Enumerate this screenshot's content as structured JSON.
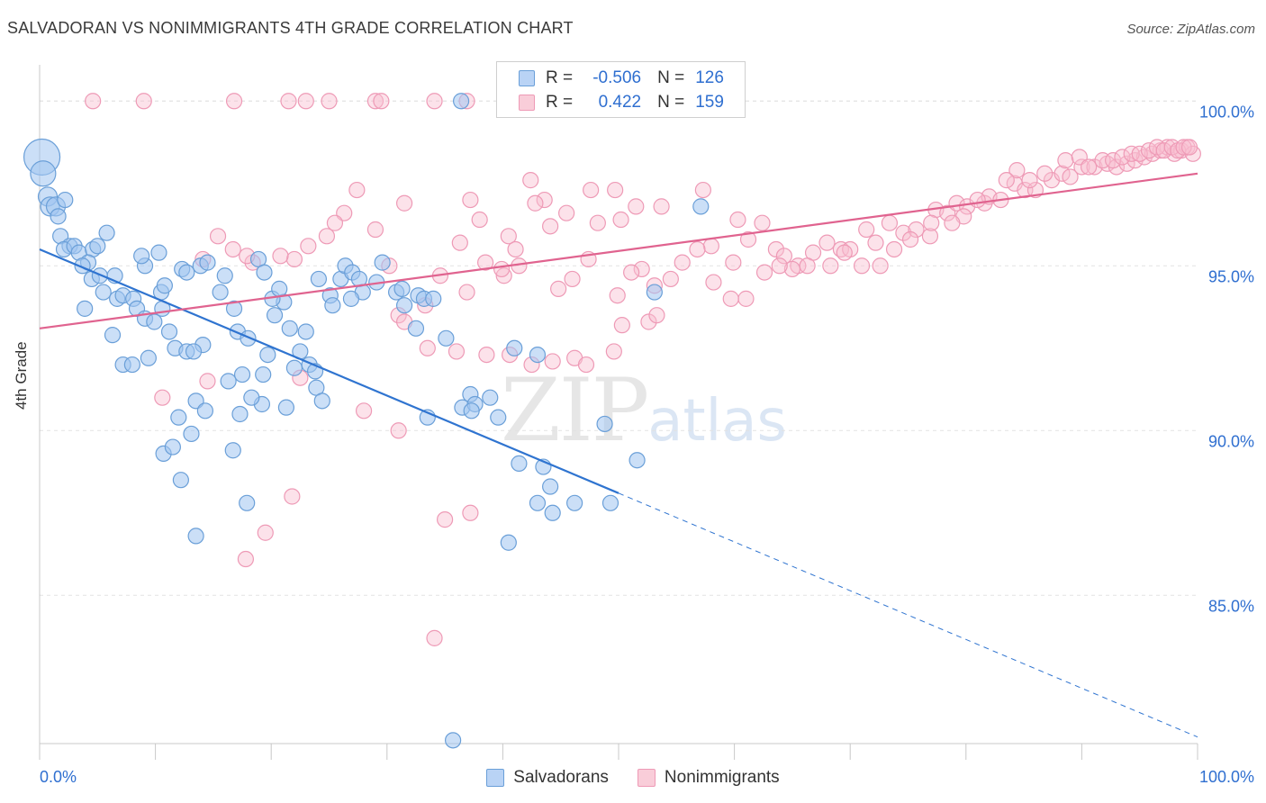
{
  "title": "SALVADORAN VS NONIMMIGRANTS 4TH GRADE CORRELATION CHART",
  "source": "Source: ZipAtlas.com",
  "watermark": {
    "zip": "ZIP",
    "atlas": "atlas"
  },
  "legend_top": {
    "rows": [
      {
        "r_label": "R =",
        "r_value": "-0.506",
        "n_label": "N =",
        "n_value": "126"
      },
      {
        "r_label": "R =",
        "r_value": "0.422",
        "n_label": "N =",
        "n_value": "159"
      }
    ]
  },
  "legend_bottom": {
    "series1": "Salvadorans",
    "series2": "Nonimmigrants"
  },
  "colors": {
    "blue_fill": "rgba(160,196,240,0.55)",
    "blue_stroke": "#6a9fd8",
    "blue_line": "#2f74d0",
    "pink_fill": "rgba(248,190,208,0.45)",
    "pink_stroke": "#ee9ab6",
    "pink_line": "#e0638f",
    "tick_label": "#2f6fd0",
    "grid": "#e2e2e2"
  },
  "chart_data": {
    "type": "scatter",
    "title": "SALVADORAN VS NONIMMIGRANTS 4TH GRADE CORRELATION CHART",
    "xlabel": "",
    "ylabel": "4th Grade",
    "xlim": [
      0,
      100
    ],
    "ylim": [
      80.5,
      101.1
    ],
    "x_tick_labels": [
      "0.0%",
      "100.0%"
    ],
    "y_ticks": [
      85,
      90,
      95,
      100
    ],
    "y_tick_labels": [
      "85.0%",
      "90.0%",
      "95.0%",
      "100.0%"
    ],
    "grid": true,
    "legend_position": "top-center",
    "series": [
      {
        "name": "Salvadorans",
        "R": -0.506,
        "N": 126,
        "trend": {
          "x0": 0,
          "y0": 95.5,
          "x_solid_end": 50,
          "x1": 100,
          "y1": 80.7
        },
        "points": [
          [
            0.2,
            98.3
          ],
          [
            0.3,
            97.8
          ],
          [
            0.7,
            97.1
          ],
          [
            0.9,
            96.8
          ],
          [
            1.4,
            96.8
          ],
          [
            1.6,
            96.5
          ],
          [
            2.2,
            97.0
          ],
          [
            1.8,
            95.9
          ],
          [
            2.6,
            95.6
          ],
          [
            2.1,
            95.5
          ],
          [
            3.0,
            95.6
          ],
          [
            3.4,
            95.4
          ],
          [
            4.6,
            95.5
          ],
          [
            5.0,
            95.6
          ],
          [
            5.8,
            96.0
          ],
          [
            4.2,
            95.1
          ],
          [
            3.7,
            95.0
          ],
          [
            4.5,
            94.6
          ],
          [
            5.2,
            94.7
          ],
          [
            6.5,
            94.7
          ],
          [
            5.5,
            94.2
          ],
          [
            6.7,
            94.0
          ],
          [
            7.2,
            94.1
          ],
          [
            8.1,
            94.0
          ],
          [
            3.9,
            93.7
          ],
          [
            8.4,
            93.7
          ],
          [
            9.1,
            93.4
          ],
          [
            9.9,
            93.3
          ],
          [
            10.6,
            93.7
          ],
          [
            11.2,
            93.0
          ],
          [
            6.3,
            92.9
          ],
          [
            11.7,
            92.5
          ],
          [
            12.7,
            92.4
          ],
          [
            14.1,
            92.6
          ],
          [
            13.3,
            92.4
          ],
          [
            7.2,
            92.0
          ],
          [
            8.0,
            92.0
          ],
          [
            9.4,
            92.2
          ],
          [
            10.5,
            94.2
          ],
          [
            10.8,
            94.4
          ],
          [
            10.3,
            95.4
          ],
          [
            9.1,
            95.0
          ],
          [
            8.8,
            95.3
          ],
          [
            12.3,
            94.9
          ],
          [
            12.7,
            94.8
          ],
          [
            13.9,
            95.0
          ],
          [
            14.5,
            95.1
          ],
          [
            15.6,
            94.2
          ],
          [
            16.0,
            94.7
          ],
          [
            16.8,
            93.7
          ],
          [
            17.1,
            93.0
          ],
          [
            18.9,
            95.2
          ],
          [
            19.4,
            94.8
          ],
          [
            20.3,
            93.5
          ],
          [
            21.1,
            93.9
          ],
          [
            19.7,
            92.3
          ],
          [
            18.0,
            92.8
          ],
          [
            17.5,
            91.7
          ],
          [
            19.3,
            91.7
          ],
          [
            22.5,
            92.4
          ],
          [
            22.0,
            91.9
          ],
          [
            23.3,
            92.0
          ],
          [
            23.8,
            91.8
          ],
          [
            23.9,
            91.3
          ],
          [
            24.4,
            90.9
          ],
          [
            21.3,
            90.7
          ],
          [
            19.2,
            90.8
          ],
          [
            18.3,
            91.0
          ],
          [
            13.5,
            90.9
          ],
          [
            16.3,
            91.5
          ],
          [
            17.3,
            90.5
          ],
          [
            14.3,
            90.6
          ],
          [
            12.0,
            90.4
          ],
          [
            13.1,
            89.9
          ],
          [
            10.7,
            89.3
          ],
          [
            11.5,
            89.5
          ],
          [
            16.7,
            89.4
          ],
          [
            17.9,
            87.8
          ],
          [
            12.2,
            88.5
          ],
          [
            13.5,
            86.8
          ],
          [
            20.1,
            94.0
          ],
          [
            20.7,
            94.3
          ],
          [
            21.6,
            93.1
          ],
          [
            23.0,
            93.0
          ],
          [
            24.1,
            94.6
          ],
          [
            25.1,
            94.1
          ],
          [
            26.0,
            94.6
          ],
          [
            26.4,
            95.0
          ],
          [
            27.0,
            94.8
          ],
          [
            27.6,
            94.6
          ],
          [
            27.9,
            94.2
          ],
          [
            26.9,
            94.0
          ],
          [
            25.3,
            93.8
          ],
          [
            29.1,
            94.5
          ],
          [
            29.6,
            95.1
          ],
          [
            30.8,
            94.2
          ],
          [
            31.3,
            94.3
          ],
          [
            31.5,
            93.8
          ],
          [
            32.7,
            94.1
          ],
          [
            32.5,
            93.1
          ],
          [
            33.2,
            94.0
          ],
          [
            34.0,
            94.0
          ],
          [
            35.1,
            92.8
          ],
          [
            37.2,
            91.1
          ],
          [
            36.5,
            90.7
          ],
          [
            37.6,
            90.8
          ],
          [
            37.3,
            90.6
          ],
          [
            38.9,
            91.0
          ],
          [
            39.6,
            90.4
          ],
          [
            33.5,
            90.4
          ],
          [
            41.0,
            92.5
          ],
          [
            43.0,
            92.3
          ],
          [
            41.4,
            89.0
          ],
          [
            43.5,
            88.9
          ],
          [
            44.1,
            88.3
          ],
          [
            43.0,
            87.8
          ],
          [
            44.3,
            87.5
          ],
          [
            40.5,
            86.6
          ],
          [
            46.2,
            87.8
          ],
          [
            48.8,
            90.2
          ],
          [
            51.6,
            89.1
          ],
          [
            49.3,
            87.8
          ],
          [
            53.1,
            94.2
          ],
          [
            57.1,
            96.8
          ],
          [
            36.4,
            100.0
          ],
          [
            35.7,
            80.6
          ]
        ]
      },
      {
        "name": "Nonimmigrants",
        "R": 0.422,
        "N": 159,
        "trend": {
          "x0": 0,
          "y0": 93.1,
          "x1": 100,
          "y1": 97.8
        },
        "points": [
          [
            4.6,
            100.0
          ],
          [
            9.0,
            100.0
          ],
          [
            16.8,
            100.0
          ],
          [
            21.5,
            100.0
          ],
          [
            23.0,
            100.0
          ],
          [
            25.0,
            100.0
          ],
          [
            29.0,
            100.0
          ],
          [
            29.5,
            100.0
          ],
          [
            34.1,
            100.0
          ],
          [
            36.9,
            100.0
          ],
          [
            37.2,
            97.0
          ],
          [
            38.0,
            96.4
          ],
          [
            40.1,
            94.7
          ],
          [
            40.5,
            95.9
          ],
          [
            41.1,
            95.5
          ],
          [
            42.4,
            97.6
          ],
          [
            43.6,
            97.0
          ],
          [
            45.5,
            96.6
          ],
          [
            47.6,
            97.3
          ],
          [
            48.2,
            96.3
          ],
          [
            49.7,
            97.3
          ],
          [
            50.2,
            96.4
          ],
          [
            51.5,
            96.8
          ],
          [
            53.7,
            96.8
          ],
          [
            57.3,
            97.3
          ],
          [
            58.0,
            95.6
          ],
          [
            59.9,
            95.1
          ],
          [
            60.3,
            96.4
          ],
          [
            61.2,
            95.8
          ],
          [
            62.4,
            96.3
          ],
          [
            63.6,
            95.5
          ],
          [
            64.3,
            95.3
          ],
          [
            65.5,
            95.0
          ],
          [
            66.8,
            95.4
          ],
          [
            68.0,
            95.7
          ],
          [
            69.2,
            95.5
          ],
          [
            70.0,
            95.5
          ],
          [
            71.4,
            96.1
          ],
          [
            72.2,
            95.7
          ],
          [
            73.4,
            96.3
          ],
          [
            74.6,
            96.0
          ],
          [
            75.7,
            96.1
          ],
          [
            76.9,
            95.9
          ],
          [
            77.4,
            96.7
          ],
          [
            78.4,
            96.6
          ],
          [
            79.2,
            96.9
          ],
          [
            80.1,
            96.8
          ],
          [
            81.6,
            96.9
          ],
          [
            82.0,
            97.1
          ],
          [
            83.0,
            97.0
          ],
          [
            84.2,
            97.5
          ],
          [
            85.1,
            97.3
          ],
          [
            86.0,
            97.3
          ],
          [
            87.4,
            97.6
          ],
          [
            88.3,
            97.8
          ],
          [
            89.0,
            97.7
          ],
          [
            90.0,
            98.0
          ],
          [
            91.1,
            98.0
          ],
          [
            92.2,
            98.1
          ],
          [
            93.0,
            98.0
          ],
          [
            93.9,
            98.1
          ],
          [
            94.6,
            98.2
          ],
          [
            95.4,
            98.3
          ],
          [
            96.1,
            98.4
          ],
          [
            96.8,
            98.5
          ],
          [
            97.4,
            98.6
          ],
          [
            98.0,
            98.4
          ],
          [
            98.6,
            98.5
          ],
          [
            99.1,
            98.6
          ],
          [
            99.6,
            98.4
          ],
          [
            88.6,
            98.2
          ],
          [
            89.8,
            98.3
          ],
          [
            90.6,
            98.0
          ],
          [
            91.8,
            98.2
          ],
          [
            92.7,
            98.2
          ],
          [
            93.5,
            98.3
          ],
          [
            94.3,
            98.4
          ],
          [
            95.0,
            98.4
          ],
          [
            95.8,
            98.5
          ],
          [
            96.5,
            98.6
          ],
          [
            97.1,
            98.5
          ],
          [
            97.8,
            98.6
          ],
          [
            98.3,
            98.5
          ],
          [
            98.8,
            98.6
          ],
          [
            99.3,
            98.6
          ],
          [
            85.5,
            97.6
          ],
          [
            86.8,
            97.8
          ],
          [
            84.4,
            97.9
          ],
          [
            83.5,
            97.6
          ],
          [
            81.0,
            97.0
          ],
          [
            79.8,
            96.5
          ],
          [
            78.8,
            96.3
          ],
          [
            77.0,
            96.3
          ],
          [
            75.2,
            95.8
          ],
          [
            73.8,
            95.5
          ],
          [
            72.6,
            95.0
          ],
          [
            71.0,
            95.0
          ],
          [
            69.5,
            95.4
          ],
          [
            68.3,
            95.0
          ],
          [
            66.3,
            95.0
          ],
          [
            65.0,
            94.9
          ],
          [
            63.9,
            95.0
          ],
          [
            62.6,
            94.8
          ],
          [
            61.0,
            94.0
          ],
          [
            59.7,
            94.0
          ],
          [
            58.2,
            94.5
          ],
          [
            56.8,
            95.5
          ],
          [
            55.5,
            95.1
          ],
          [
            54.5,
            94.6
          ],
          [
            53.1,
            94.4
          ],
          [
            52.0,
            94.9
          ],
          [
            51.1,
            94.8
          ],
          [
            49.9,
            94.1
          ],
          [
            47.4,
            95.2
          ],
          [
            46.0,
            94.6
          ],
          [
            44.8,
            94.3
          ],
          [
            44.1,
            96.2
          ],
          [
            42.8,
            96.9
          ],
          [
            41.4,
            95.0
          ],
          [
            39.9,
            94.9
          ],
          [
            38.5,
            95.1
          ],
          [
            36.9,
            94.2
          ],
          [
            36.3,
            95.7
          ],
          [
            34.6,
            94.7
          ],
          [
            33.3,
            93.8
          ],
          [
            31.5,
            96.9
          ],
          [
            30.2,
            95.0
          ],
          [
            29.0,
            96.1
          ],
          [
            27.4,
            97.3
          ],
          [
            26.3,
            96.6
          ],
          [
            25.5,
            96.3
          ],
          [
            24.8,
            95.9
          ],
          [
            23.2,
            95.6
          ],
          [
            22.0,
            95.2
          ],
          [
            20.8,
            95.3
          ],
          [
            18.4,
            95.1
          ],
          [
            17.9,
            95.3
          ],
          [
            16.7,
            95.5
          ],
          [
            15.4,
            95.9
          ],
          [
            14.1,
            95.2
          ],
          [
            31.0,
            93.5
          ],
          [
            31.5,
            93.3
          ],
          [
            33.5,
            92.5
          ],
          [
            36.0,
            92.4
          ],
          [
            38.6,
            92.3
          ],
          [
            40.6,
            92.3
          ],
          [
            42.5,
            92.0
          ],
          [
            44.3,
            92.1
          ],
          [
            46.2,
            92.2
          ],
          [
            47.2,
            92.0
          ],
          [
            49.6,
            92.4
          ],
          [
            50.3,
            93.2
          ],
          [
            52.6,
            93.3
          ],
          [
            53.3,
            93.5
          ],
          [
            28.0,
            90.6
          ],
          [
            31.0,
            90.0
          ],
          [
            35.0,
            87.3
          ],
          [
            37.2,
            87.5
          ],
          [
            19.5,
            86.9
          ],
          [
            17.8,
            86.1
          ],
          [
            21.8,
            88.0
          ],
          [
            34.1,
            83.7
          ],
          [
            10.6,
            91.0
          ],
          [
            14.5,
            91.5
          ],
          [
            22.5,
            91.6
          ]
        ]
      }
    ]
  }
}
